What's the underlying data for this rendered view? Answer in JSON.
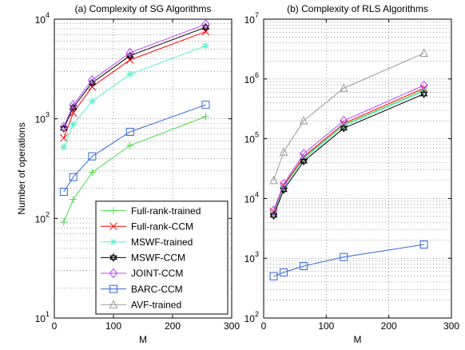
{
  "chart_data": [
    {
      "type": "line",
      "title": "(a) Complexity of SG Algorithms",
      "xlabel": "M",
      "ylabel": "Number of operations",
      "x": [
        16,
        32,
        64,
        128,
        256
      ],
      "xlim": [
        0,
        300
      ],
      "xticks": [
        0,
        100,
        200,
        300
      ],
      "ylim": [
        10,
        10000
      ],
      "log_y": true,
      "grid": true,
      "legend": "lower right",
      "yticks": [
        {
          "value": 10,
          "label": "10^1"
        },
        {
          "value": 100,
          "label": "10^2"
        },
        {
          "value": 1000,
          "label": "10^3"
        },
        {
          "value": 10000,
          "label": "10^4"
        }
      ],
      "series": [
        {
          "name": "Full-rank-trained",
          "color": "#44dd44",
          "marker": "plus",
          "values": [
            92,
            155,
            290,
            540,
            1050
          ]
        },
        {
          "name": "Full-rank-CCM",
          "color": "#ff0000",
          "marker": "x",
          "values": [
            640,
            1150,
            2100,
            3900,
            7500
          ]
        },
        {
          "name": "MSWF-trained",
          "color": "#55eecc",
          "marker": "star",
          "values": [
            520,
            880,
            1500,
            2800,
            5400
          ]
        },
        {
          "name": "MSWF-CCM",
          "color": "#000000",
          "marker": "hexagram",
          "values": [
            800,
            1300,
            2300,
            4300,
            8300
          ]
        },
        {
          "name": "JOINT-CCM",
          "color": "#bb44ff",
          "marker": "diamond",
          "values": [
            830,
            1380,
            2450,
            4600,
            8900
          ]
        },
        {
          "name": "BARC-CCM",
          "color": "#3366dd",
          "marker": "square",
          "values": [
            185,
            260,
            420,
            740,
            1380
          ]
        },
        {
          "name": "AVF-trained",
          "color": "#999999",
          "marker": "triangle",
          "values": [
            null,
            null,
            null,
            null,
            null
          ]
        }
      ]
    },
    {
      "type": "line",
      "title": "(b) Complexity of RLS Algorithms",
      "xlabel": "M",
      "x": [
        16,
        32,
        64,
        128,
        256
      ],
      "xlim": [
        0,
        300
      ],
      "xticks": [
        0,
        100,
        200,
        300
      ],
      "ylim": [
        100,
        10000000
      ],
      "log_y": true,
      "grid": true,
      "yticks": [
        {
          "value": 100,
          "label": "10^2"
        },
        {
          "value": 1000,
          "label": "10^3"
        },
        {
          "value": 10000,
          "label": "10^4"
        },
        {
          "value": 100000,
          "label": "10^5"
        },
        {
          "value": 1000000,
          "label": "10^6"
        },
        {
          "value": 10000000,
          "label": "10^7"
        }
      ],
      "series": [
        {
          "color": "#44dd44",
          "marker": "plus",
          "values": [
            5800,
            16000,
            48000,
            170000,
            650000
          ]
        },
        {
          "color": "#ff0000",
          "marker": "x",
          "values": [
            6000,
            16500,
            50000,
            180000,
            700000
          ]
        },
        {
          "color": "#55eecc",
          "marker": "star",
          "values": [
            5500,
            15500,
            46000,
            165000,
            620000
          ]
        },
        {
          "color": "#000000",
          "marker": "hexagram",
          "values": [
            5200,
            14000,
            42000,
            150000,
            560000
          ]
        },
        {
          "color": "#bb44ff",
          "marker": "diamond",
          "values": [
            6300,
            17500,
            56000,
            200000,
            780000
          ]
        },
        {
          "color": "#3366dd",
          "marker": "square",
          "values": [
            500,
            580,
            740,
            1050,
            1700
          ]
        },
        {
          "color": "#999999",
          "marker": "triangle",
          "values": [
            20000,
            60000,
            200000,
            700000,
            2700000
          ]
        }
      ]
    }
  ]
}
